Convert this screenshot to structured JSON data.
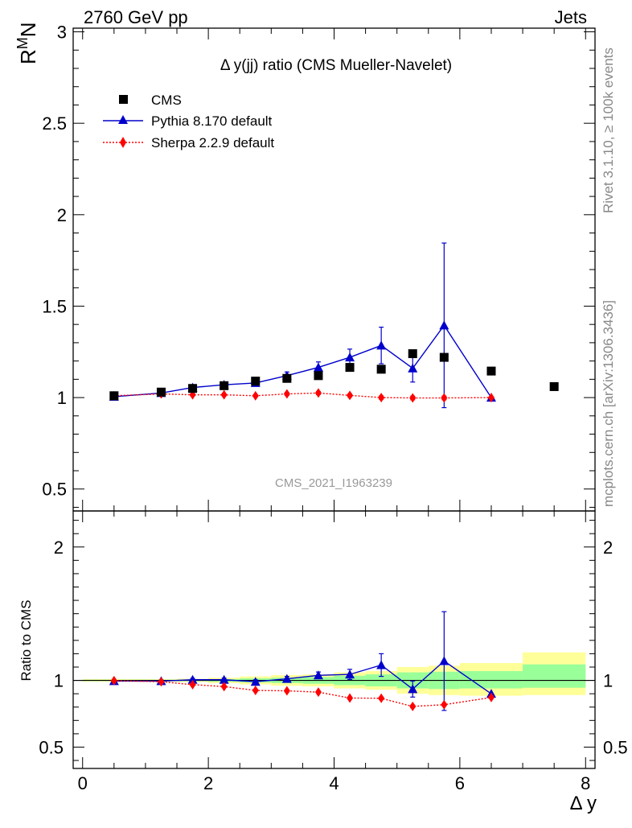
{
  "header": {
    "left": "2760 GeV pp",
    "right": "Jets"
  },
  "side_labels": {
    "rivet": "Rivet 3.1.10, ≥ 100k events",
    "mcplots": "mcplots.cern.ch [arXiv:1306.3436]"
  },
  "main_panel": {
    "title": "Δ y(jj) ratio (CMS Mueller-Navelet)",
    "ylabel_main": "R",
    "ylabel_sup": "M",
    "ylabel_sub": "N",
    "watermark": "CMS_2021_I1963239"
  },
  "ratio_panel": {
    "ylabel": "Ratio to CMS"
  },
  "xaxis": {
    "label": "Δ y"
  },
  "legend": [
    {
      "name": "CMS",
      "color": "#000000"
    },
    {
      "name": "Pythia 8.170 default",
      "color": "#0000cc"
    },
    {
      "name": "Sherpa 2.2.9 default",
      "color": "#ff0000"
    }
  ],
  "chart_data": {
    "type": "scatter",
    "xlim": [
      -0.15,
      8.15
    ],
    "ylim_main": [
      0.38,
      3.02
    ],
    "ylim_ratio": [
      0.34,
      2.27
    ],
    "xticks": [
      0,
      2,
      4,
      6,
      8
    ],
    "yticks_main": [
      0.5,
      1,
      1.5,
      2,
      2.5,
      3
    ],
    "yticks_ratio": [
      0.5,
      1,
      2
    ],
    "data": {
      "name": "CMS",
      "x": [
        0.5,
        1.25,
        1.75,
        2.25,
        2.75,
        3.25,
        3.75,
        4.25,
        4.75,
        5.25,
        5.75,
        6.5,
        7.5
      ],
      "y": [
        1.01,
        1.03,
        1.05,
        1.065,
        1.09,
        1.105,
        1.12,
        1.165,
        1.155,
        1.24,
        1.22,
        1.145,
        1.06
      ],
      "bands": [
        {
          "x0": 0.0,
          "x1": 1.0,
          "inner": [
            0.995,
            1.005
          ],
          "outer": [
            0.99,
            1.01
          ]
        },
        {
          "x0": 1.0,
          "x1": 1.5,
          "inner": [
            0.995,
            1.005
          ],
          "outer": [
            0.99,
            1.01
          ]
        },
        {
          "x0": 1.5,
          "x1": 2.0,
          "inner": [
            0.994,
            1.006
          ],
          "outer": [
            0.988,
            1.012
          ]
        },
        {
          "x0": 2.0,
          "x1": 2.5,
          "inner": [
            0.99,
            1.01
          ],
          "outer": [
            0.98,
            1.02
          ]
        },
        {
          "x0": 2.5,
          "x1": 3.0,
          "inner": [
            0.985,
            1.015
          ],
          "outer": [
            0.97,
            1.03
          ]
        },
        {
          "x0": 3.0,
          "x1": 3.5,
          "inner": [
            0.98,
            1.02
          ],
          "outer": [
            0.96,
            1.04
          ]
        },
        {
          "x0": 3.5,
          "x1": 4.0,
          "inner": [
            0.975,
            1.025
          ],
          "outer": [
            0.955,
            1.045
          ]
        },
        {
          "x0": 4.0,
          "x1": 4.5,
          "inner": [
            0.965,
            1.035
          ],
          "outer": [
            0.94,
            1.06
          ]
        },
        {
          "x0": 4.5,
          "x1": 5.0,
          "inner": [
            0.955,
            1.045
          ],
          "outer": [
            0.93,
            1.07
          ]
        },
        {
          "x0": 5.0,
          "x1": 5.5,
          "inner": [
            0.94,
            1.06
          ],
          "outer": [
            0.9,
            1.1
          ]
        },
        {
          "x0": 5.5,
          "x1": 6.0,
          "inner": [
            0.935,
            1.065
          ],
          "outer": [
            0.89,
            1.11
          ]
        },
        {
          "x0": 6.0,
          "x1": 7.0,
          "inner": [
            0.94,
            1.07
          ],
          "outer": [
            0.885,
            1.13
          ]
        },
        {
          "x0": 7.0,
          "x1": 8.0,
          "inner": [
            0.945,
            1.12
          ],
          "outer": [
            0.89,
            1.21
          ]
        }
      ]
    },
    "series": [
      {
        "name": "Pythia 8.170 default",
        "color": "#0000cc",
        "marker": "triangle",
        "line": "solid",
        "x": [
          0.5,
          1.25,
          1.75,
          2.25,
          2.75,
          3.25,
          3.75,
          4.25,
          4.75,
          5.25,
          5.75,
          6.5
        ],
        "y": [
          1.005,
          1.025,
          1.055,
          1.07,
          1.08,
          1.12,
          1.165,
          1.22,
          1.285,
          1.16,
          1.395,
          1.0
        ],
        "yerr": [
          0.006,
          0.008,
          0.01,
          0.012,
          0.015,
          0.02,
          0.03,
          0.045,
          0.1,
          0.075,
          0.45,
          0.0
        ],
        "ratio": [
          0.995,
          0.995,
          1.005,
          1.005,
          0.99,
          1.012,
          1.038,
          1.045,
          1.115,
          0.935,
          1.145,
          0.9
        ],
        "ratio_err": [
          0.006,
          0.008,
          0.01,
          0.012,
          0.014,
          0.018,
          0.025,
          0.038,
          0.085,
          0.06,
          0.37,
          0.0
        ]
      },
      {
        "name": "Sherpa 2.2.9 default",
        "color": "#ff0000",
        "marker": "diamond",
        "line": "dotted",
        "x": [
          0.5,
          1.25,
          1.75,
          2.25,
          2.75,
          3.25,
          3.75,
          4.25,
          4.75,
          5.25,
          5.75,
          6.5
        ],
        "y": [
          1.01,
          1.02,
          1.015,
          1.015,
          1.01,
          1.02,
          1.025,
          1.012,
          1.0,
          0.998,
          0.998,
          1.0
        ],
        "yerr": [
          0.004,
          0.005,
          0.005,
          0.006,
          0.006,
          0.007,
          0.008,
          0.008,
          0.009,
          0.01,
          0.01,
          0.0
        ],
        "ratio": [
          0.998,
          0.99,
          0.968,
          0.954,
          0.925,
          0.922,
          0.912,
          0.868,
          0.866,
          0.805,
          0.818,
          0.872
        ],
        "ratio_err": [
          0.004,
          0.005,
          0.005,
          0.006,
          0.006,
          0.007,
          0.008,
          0.008,
          0.009,
          0.01,
          0.01,
          0.0
        ]
      }
    ]
  }
}
